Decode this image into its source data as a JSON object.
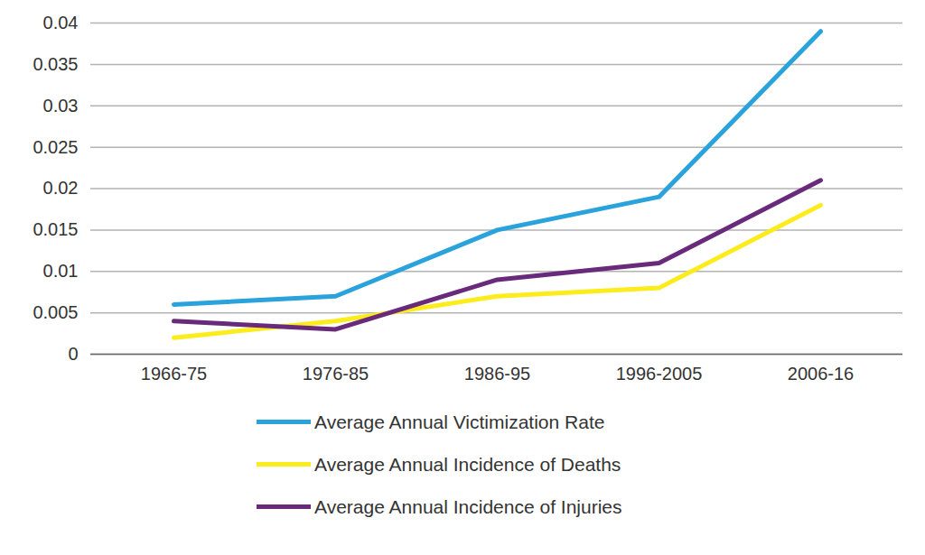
{
  "chart_data": {
    "type": "line",
    "categories": [
      "1966-75",
      "1976-85",
      "1986-95",
      "1996-2005",
      "2006-16"
    ],
    "series": [
      {
        "name": "Average Annual Victimization Rate",
        "color": "#2aa3dc",
        "values": [
          0.006,
          0.007,
          0.015,
          0.019,
          0.039
        ]
      },
      {
        "name": "Average Annual Incidence of Deaths",
        "color": "#fcec1c",
        "values": [
          0.002,
          0.004,
          0.007,
          0.008,
          0.018
        ]
      },
      {
        "name": "Average Annual Incidence of Injuries",
        "color": "#6a2a7c",
        "values": [
          0.004,
          0.003,
          0.009,
          0.011,
          0.021
        ]
      }
    ],
    "ylim": [
      0,
      0.04
    ],
    "yticks": [
      0,
      0.005,
      0.01,
      0.015,
      0.02,
      0.025,
      0.03,
      0.035,
      0.04
    ],
    "grid": true,
    "legend": "bottom"
  }
}
